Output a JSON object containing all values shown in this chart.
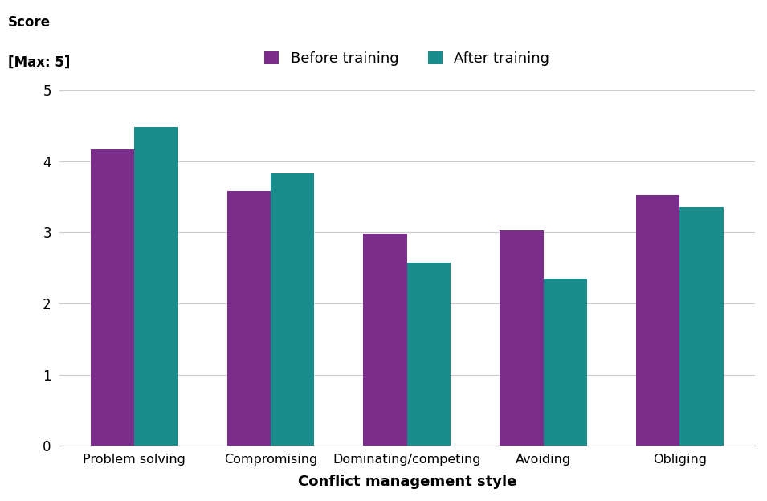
{
  "categories": [
    "Problem solving",
    "Compromising",
    "Dominating/competing",
    "Avoiding",
    "Obliging"
  ],
  "before_training": [
    4.17,
    3.58,
    2.98,
    3.03,
    3.52
  ],
  "after_training": [
    4.48,
    3.83,
    2.57,
    2.35,
    3.35
  ],
  "before_color": "#7B2D8B",
  "after_color": "#1A8C8C",
  "ylabel_line1": "Score",
  "ylabel_line2": "[Max: 5]",
  "xlabel": "Conflict management style",
  "legend_before": "Before training",
  "legend_after": "After training",
  "ylim": [
    0,
    5
  ],
  "yticks": [
    0,
    1,
    2,
    3,
    4,
    5
  ],
  "bar_width": 0.32,
  "background_color": "#ffffff",
  "grid_color": "#cccccc"
}
